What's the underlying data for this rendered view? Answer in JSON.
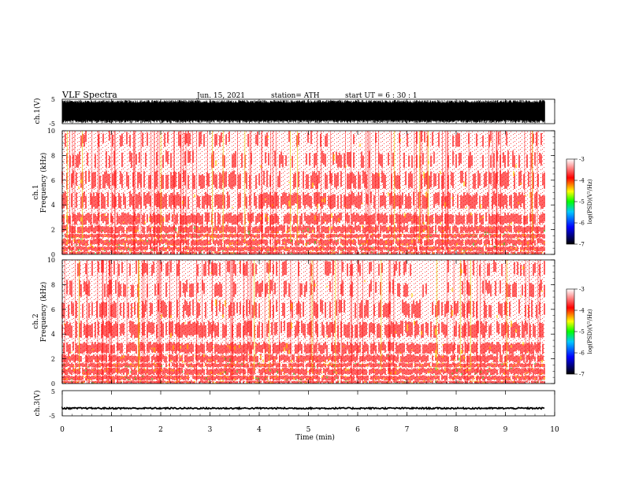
{
  "header": {
    "title": "VLF  Spectra",
    "date": "Jun. 15, 2021",
    "station": "station= ATH",
    "start_ut": "start  UT  =   6  : 30 : 1"
  },
  "chart_data": [
    {
      "type": "line",
      "name": "ch1-waveform",
      "ylabel": "ch.1(V)",
      "ylim": [
        -5,
        5
      ],
      "yticks": [
        "5",
        "-5"
      ],
      "xlim": [
        0,
        10
      ],
      "amplitude_v": 4.7,
      "fill_color": "#000000"
    },
    {
      "type": "heatmap",
      "name": "ch1-spectrogram",
      "ylabel": "ch.1\nFrequency (kHz)",
      "ylabel_line1": "ch.1",
      "ylabel_line2": "Frequency (kHz)",
      "ylim": [
        0,
        10
      ],
      "yticks": [
        "0",
        "2",
        "4",
        "6",
        "8",
        "10"
      ],
      "xlim": [
        0,
        10
      ],
      "data_extent_min": 9.8,
      "colorbar": {
        "label": "log(PSD)(V²/Hz)",
        "range": [
          -7,
          -3
        ],
        "ticks": [
          "-3",
          "-4",
          "-5",
          "-6",
          "-7"
        ]
      }
    },
    {
      "type": "heatmap",
      "name": "ch2-spectrogram",
      "ylabel_line1": "ch.2",
      "ylabel_line2": "Frequency (kHz)",
      "ylim": [
        0,
        10
      ],
      "yticks": [
        "0",
        "2",
        "4",
        "6",
        "8",
        "10"
      ],
      "xlim": [
        0,
        10
      ],
      "data_extent_min": 9.8,
      "colorbar": {
        "label": "log(PSD)(V²/Hz)",
        "range": [
          -7,
          -3
        ],
        "ticks": [
          "-3",
          "-4",
          "-5",
          "-6",
          "-7"
        ]
      }
    },
    {
      "type": "line",
      "name": "ch3-waveform",
      "ylabel": "ch.3(V)",
      "ylim": [
        -5,
        5
      ],
      "yticks": [
        "5",
        "-5"
      ],
      "xlim": [
        0,
        10
      ],
      "level_v": -2.0,
      "amplitude_v": 0.3
    }
  ],
  "xaxis": {
    "label": "Time  (min)",
    "ticks": [
      "0",
      "1",
      "2",
      "3",
      "4",
      "5",
      "6",
      "7",
      "8",
      "9",
      "10"
    ],
    "range": [
      0,
      10
    ]
  },
  "colormap": [
    "#000000",
    "#0000ff",
    "#00c8ff",
    "#00ff00",
    "#ffff00",
    "#ff0000",
    "#ffffff"
  ]
}
